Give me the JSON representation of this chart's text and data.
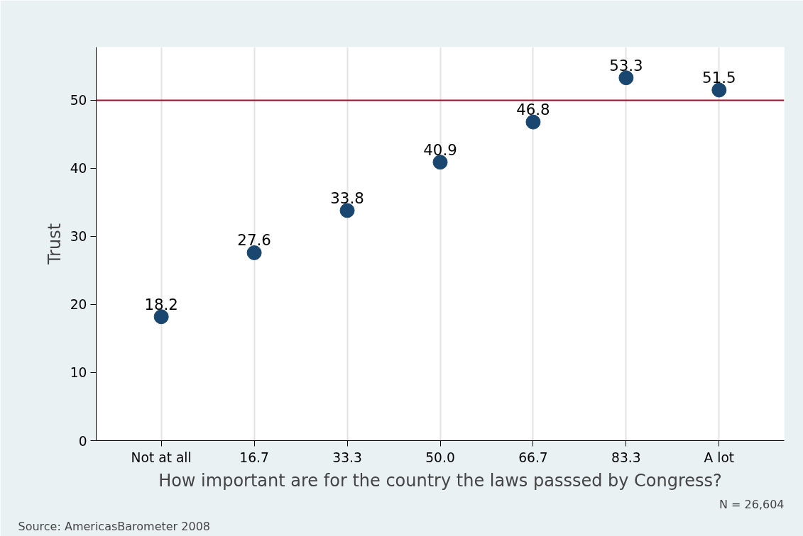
{
  "chart_data": {
    "type": "scatter",
    "xlabel": "How important are for the country the laws passsed by Congress?",
    "ylabel": "Trust",
    "categories": [
      "Not at all",
      "16.7",
      "33.3",
      "50.0",
      "66.7",
      "83.3",
      "A lot"
    ],
    "series": [
      {
        "color": "#1a476f",
        "values": [
          18.2,
          27.6,
          33.8,
          40.9,
          46.8,
          53.3,
          51.5
        ]
      }
    ],
    "ylim": [
      0,
      57.8
    ],
    "yticks": [
      0,
      10,
      20,
      30,
      40,
      50
    ],
    "grid": "x",
    "marker": "circle",
    "data_labels": true,
    "ref_lines": [
      {
        "axis": "y",
        "value": 50,
        "color": "#a50f2d",
        "line_style": "solid"
      }
    ],
    "annotations": [
      "Source: AmericasBarometer 2008",
      "N = 26,604"
    ]
  }
}
